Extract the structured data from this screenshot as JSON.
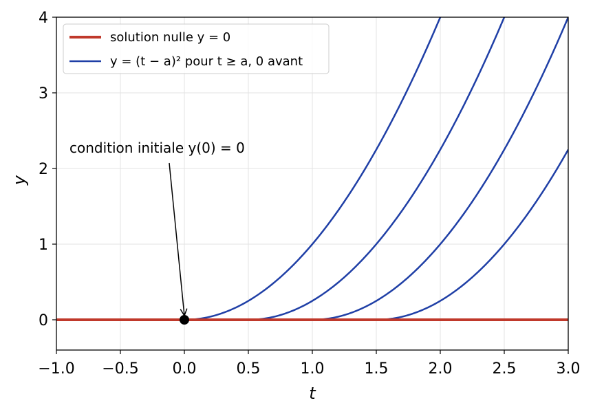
{
  "chart_data": {
    "type": "line",
    "xlabel": "t",
    "ylabel": "y",
    "xlim": [
      -1.0,
      3.0
    ],
    "ylim": [
      -0.4,
      4.0
    ],
    "x_ticks": [
      -1.0,
      -0.5,
      0.0,
      0.5,
      1.0,
      1.5,
      2.0,
      2.5,
      3.0
    ],
    "x_tick_labels": [
      "−1.0",
      "−0.5",
      "0.0",
      "0.5",
      "1.0",
      "1.5",
      "2.0",
      "2.5",
      "3.0"
    ],
    "y_ticks": [
      0,
      1,
      2,
      3,
      4
    ],
    "y_tick_labels": [
      "0",
      "1",
      "2",
      "3",
      "4"
    ],
    "grid": true,
    "legend_position": "top-left",
    "colors": {
      "null_solution": "#c0392b",
      "family": "#1f3fa6",
      "point": "#000000"
    },
    "legend": [
      {
        "label": "solution nulle y = 0",
        "color": "#c0392b"
      },
      {
        "label": "y = (t − a)² pour t ≥ a, 0 avant",
        "color": "#1f3fa6"
      }
    ],
    "series": [
      {
        "name": "solution nulle y = 0",
        "formula": "y = 0",
        "x": [
          -1.0,
          3.0
        ],
        "y": [
          0,
          0
        ]
      },
      {
        "name": "y = (t − a)² pour t ≥ a, 0 avant",
        "a": 0.0,
        "formula": "y = (t - 0)^2 for t >= 0, 0 before"
      },
      {
        "name": "y = (t − a)² pour t ≥ a, 0 avant",
        "a": 0.5,
        "formula": "y = (t - 0.5)^2 for t >= 0.5, 0 before"
      },
      {
        "name": "y = (t − a)² pour t ≥ a, 0 avant",
        "a": 1.0,
        "formula": "y = (t - 1)^2 for t >= 1, 0 before"
      },
      {
        "name": "y = (t − a)² pour t ≥ a, 0 avant",
        "a": 1.5,
        "formula": "y = (t - 1.5)^2 for t >= 1.5, 0 before"
      }
    ],
    "point": {
      "x": 0.0,
      "y": 0.0
    },
    "annotation": {
      "text": "condition initiale y(0) = 0",
      "target": {
        "x": 0.0,
        "y": 0.0
      }
    }
  }
}
